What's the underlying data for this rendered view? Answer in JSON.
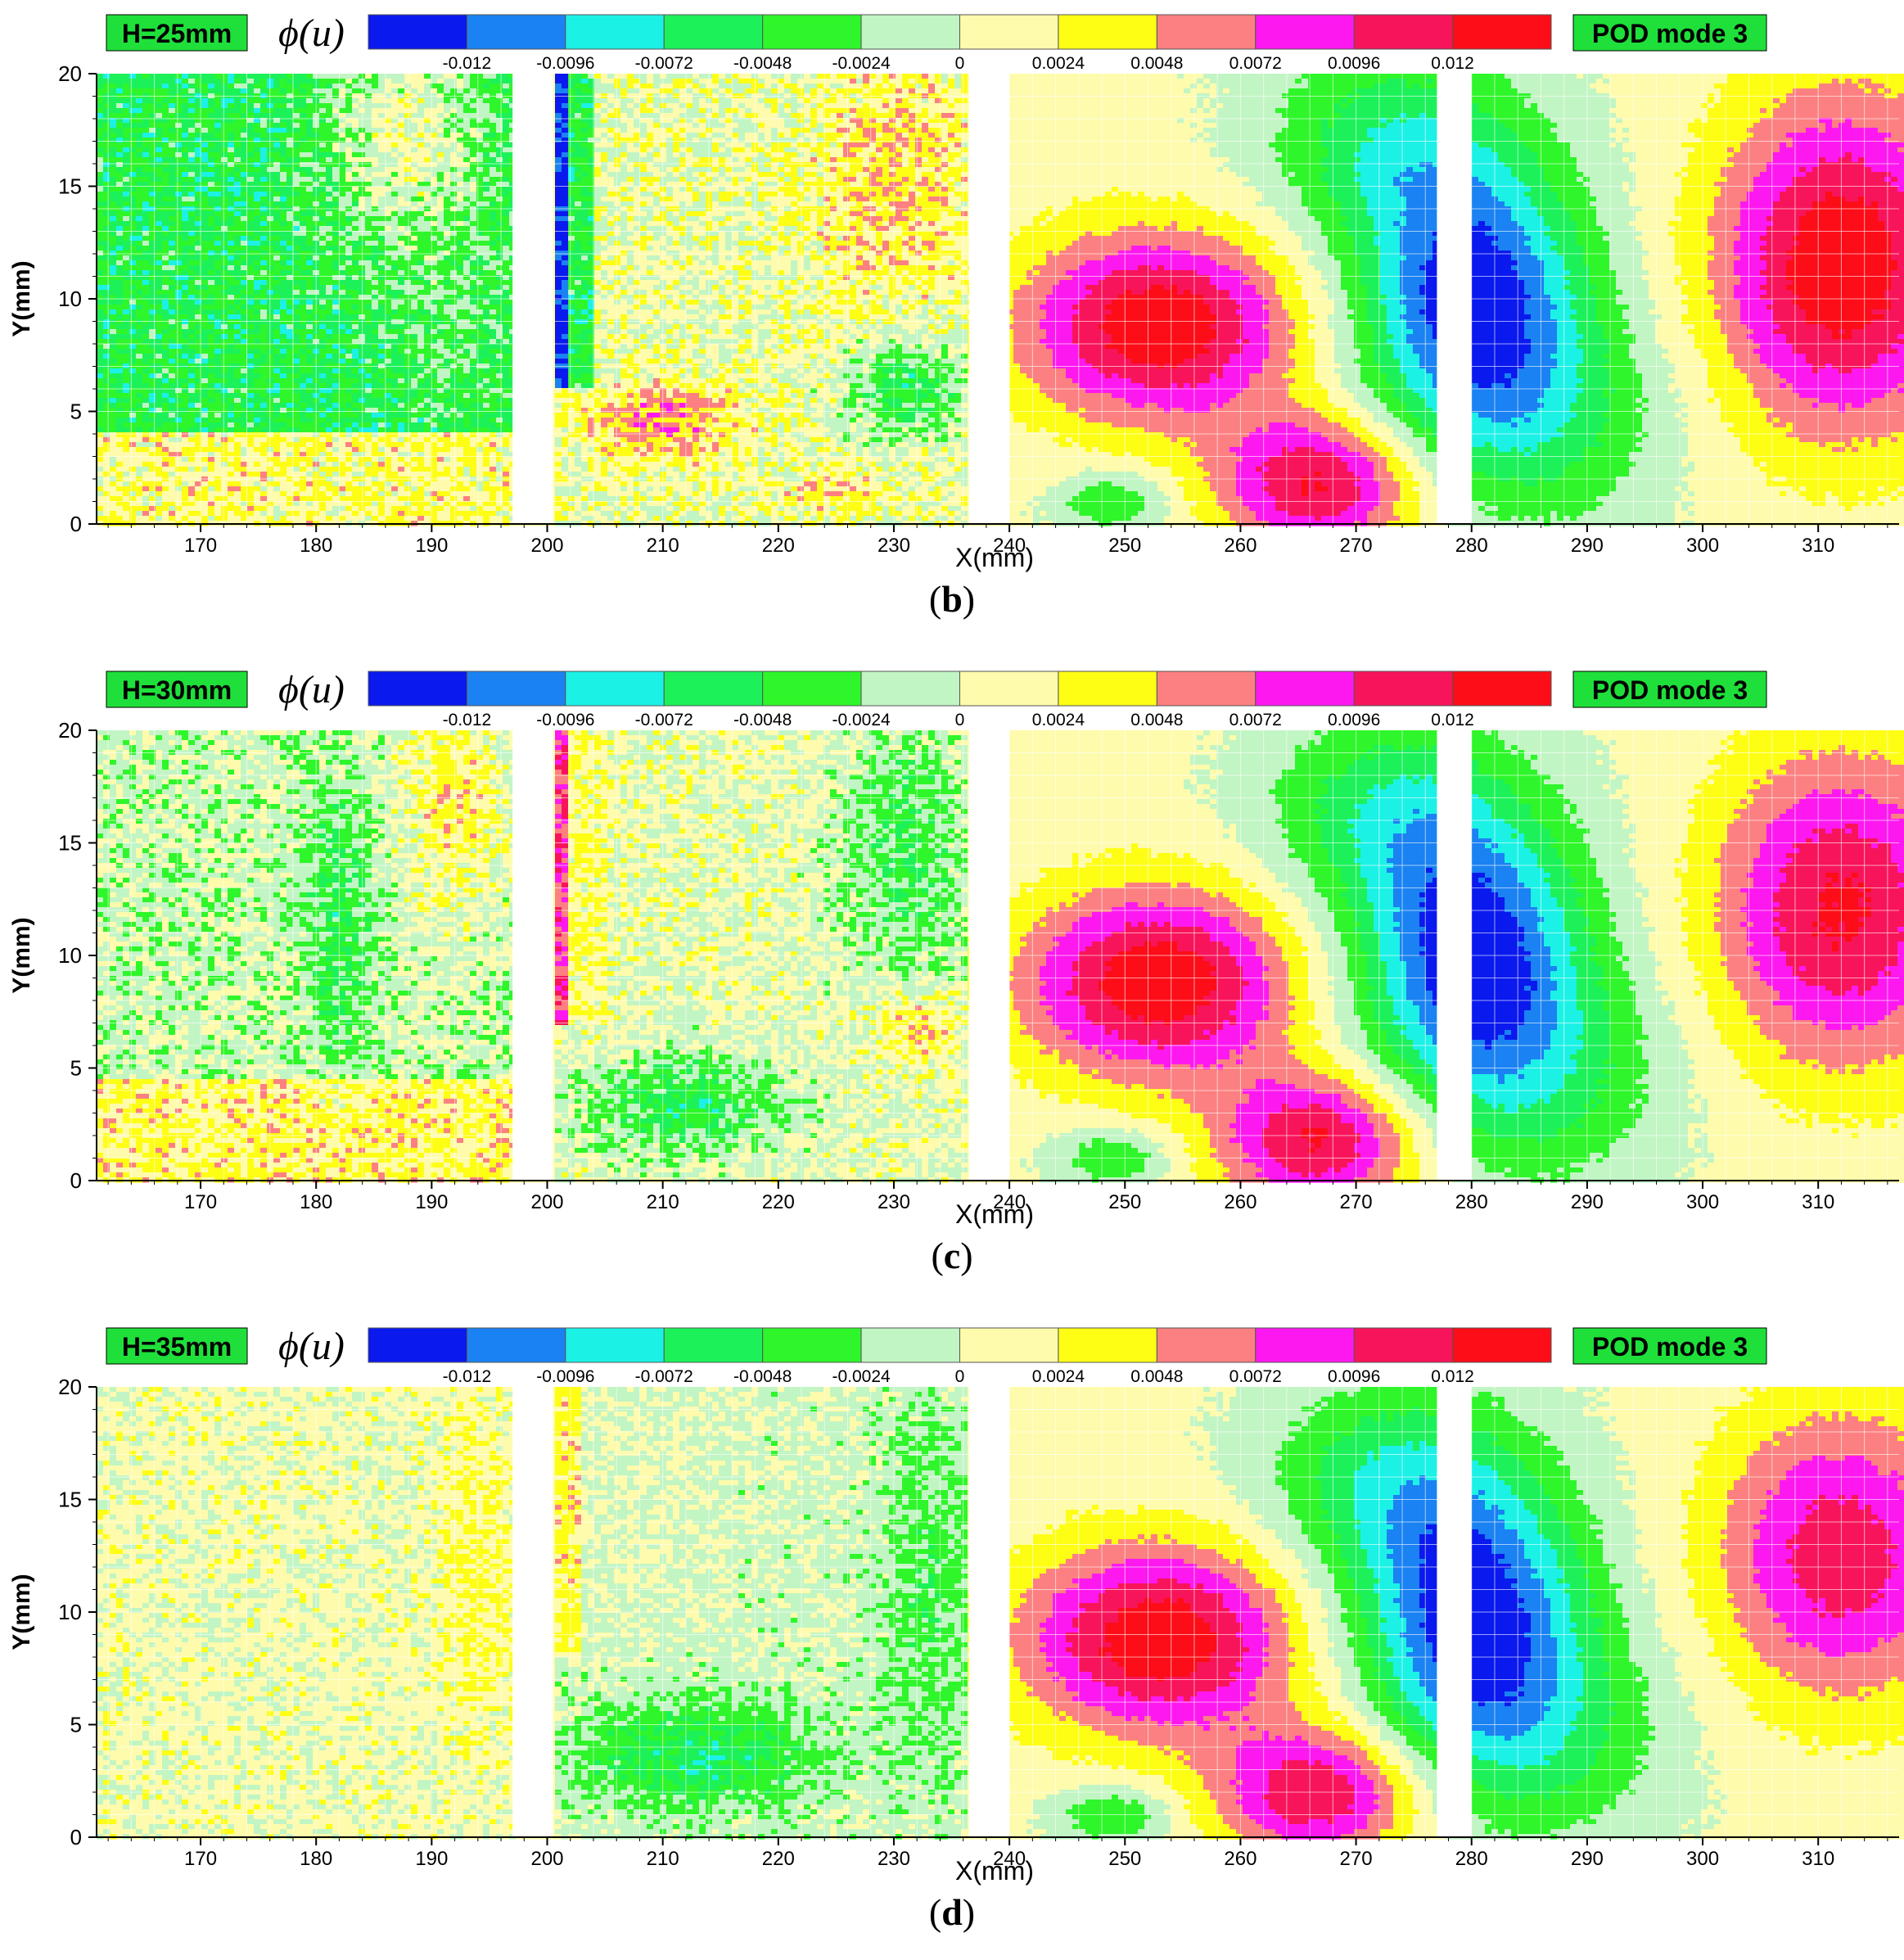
{
  "chart_data": [
    {
      "type": "heatmap",
      "panel_label": "b",
      "h_label": "H=25mm",
      "mode_label": "POD mode 3",
      "colorbar_symbol": "ϕ(u)",
      "xlabel": "X(mm)",
      "ylabel": "Y(mm)",
      "xlim": [
        161,
        317
      ],
      "ylim": [
        0,
        20
      ],
      "x_ticks": [
        170,
        180,
        190,
        200,
        210,
        220,
        230,
        240,
        250,
        260,
        270,
        280,
        290,
        300,
        310
      ],
      "y_ticks": [
        0,
        5,
        10,
        15,
        20
      ],
      "grid": true,
      "gaps_x": [
        [
          197,
          200.5
        ],
        [
          236.5,
          240
        ],
        [
          277,
          280
        ]
      ],
      "noise_strength": 0.9,
      "features": [
        {
          "region": "left",
          "kind": "band",
          "x0": 161,
          "x1": 197,
          "y0": 4,
          "y1": 20,
          "value": -0.005
        },
        {
          "region": "left",
          "kind": "band",
          "x0": 161,
          "x1": 197,
          "y0": 0,
          "y1": 4,
          "value": 0.0022
        },
        {
          "region": "left",
          "kind": "blob",
          "x": 188,
          "y": 17,
          "sx": 7,
          "sy": 5,
          "value": 0.006
        },
        {
          "region": "left",
          "kind": "blob",
          "x": 192,
          "y": 9,
          "sx": 5,
          "sy": 4,
          "value": 0.0016
        },
        {
          "region": "mid",
          "kind": "band",
          "x0": 200.5,
          "x1": 236.5,
          "y0": 0,
          "y1": 20,
          "value": 0.0006
        },
        {
          "region": "mid",
          "kind": "strip",
          "x0": 200.5,
          "x1": 202,
          "y0": 6,
          "y1": 20,
          "value": -0.013
        },
        {
          "region": "mid",
          "kind": "strip",
          "x0": 202,
          "x1": 204,
          "y0": 6,
          "y1": 20,
          "value": -0.005
        },
        {
          "region": "mid",
          "kind": "blob",
          "x": 210,
          "y": 4.6,
          "sx": 7,
          "sy": 1.7,
          "value": 0.0058
        },
        {
          "region": "mid",
          "kind": "blob",
          "x": 230,
          "y": 15,
          "sx": 8,
          "sy": 6,
          "value": 0.0035
        },
        {
          "region": "mid",
          "kind": "blob",
          "x": 231,
          "y": 6,
          "sx": 5,
          "sy": 2,
          "value": -0.006
        },
        {
          "region": "mid",
          "kind": "blob",
          "x": 225,
          "y": 1.5,
          "sx": 6,
          "sy": 1,
          "value": 0.003
        }
      ],
      "vortices": [
        {
          "x": 253,
          "y": 8.8,
          "sx": 12,
          "sy": 4.2,
          "value": 0.0135
        },
        {
          "x": 267,
          "y": 1.8,
          "sx": 9,
          "sy": 3.0,
          "value": 0.012
        },
        {
          "x": 280,
          "y": 10.2,
          "sx": 10,
          "sy": 6.0,
          "value": -0.0135
        },
        {
          "x": 273,
          "y": 17,
          "sx": 11,
          "sy": 4.5,
          "value": -0.0065
        },
        {
          "x": 285,
          "y": 4.5,
          "sx": 12,
          "sy": 5.0,
          "value": -0.0055
        },
        {
          "x": 312,
          "y": 11.5,
          "sx": 11,
          "sy": 7.5,
          "value": 0.0135
        },
        {
          "x": 249,
          "y": 1.0,
          "sx": 5,
          "sy": 1.3,
          "value": -0.0055
        }
      ]
    },
    {
      "type": "heatmap",
      "panel_label": "c",
      "h_label": "H=30mm",
      "mode_label": "POD mode 3",
      "colorbar_symbol": "ϕ(u)",
      "xlabel": "X(mm)",
      "ylabel": "Y(mm)",
      "xlim": [
        161,
        317
      ],
      "ylim": [
        0,
        20
      ],
      "x_ticks": [
        170,
        180,
        190,
        200,
        210,
        220,
        230,
        240,
        250,
        260,
        270,
        280,
        290,
        300,
        310
      ],
      "y_ticks": [
        0,
        5,
        10,
        15,
        20
      ],
      "grid": true,
      "gaps_x": [
        [
          197,
          200.5
        ],
        [
          236.5,
          240
        ],
        [
          277,
          280
        ]
      ],
      "noise_strength": 0.8,
      "features": [
        {
          "region": "left",
          "kind": "band",
          "x0": 161,
          "x1": 197,
          "y0": 4.5,
          "y1": 20,
          "value": -0.0008
        },
        {
          "region": "left",
          "kind": "band",
          "x0": 161,
          "x1": 197,
          "y0": 0,
          "y1": 4.5,
          "value": 0.0028
        },
        {
          "region": "left",
          "kind": "blob",
          "x": 182,
          "y": 11.5,
          "sx": 3,
          "sy": 6,
          "value": -0.004
        },
        {
          "region": "left",
          "kind": "blob",
          "x": 192,
          "y": 17,
          "sx": 5,
          "sy": 5,
          "value": 0.004
        },
        {
          "region": "mid",
          "kind": "band",
          "x0": 200.5,
          "x1": 236.5,
          "y0": 0,
          "y1": 20,
          "value": 0.0005
        },
        {
          "region": "mid",
          "kind": "strip",
          "x0": 200.5,
          "x1": 202,
          "y0": 7,
          "y1": 20,
          "value": 0.0085
        },
        {
          "region": "mid",
          "kind": "strip",
          "x0": 202,
          "x1": 205,
          "y0": 7,
          "y1": 20,
          "value": 0.0022
        },
        {
          "region": "mid",
          "kind": "blob",
          "x": 212,
          "y": 3.4,
          "sx": 9,
          "sy": 2.2,
          "value": -0.0058
        },
        {
          "region": "mid",
          "kind": "blob",
          "x": 231,
          "y": 14.5,
          "sx": 6,
          "sy": 6,
          "value": -0.0045
        },
        {
          "region": "mid",
          "kind": "blob",
          "x": 232,
          "y": 6.8,
          "sx": 4,
          "sy": 1.6,
          "value": 0.004
        }
      ],
      "vortices": [
        {
          "x": 253,
          "y": 8.8,
          "sx": 12,
          "sy": 4.2,
          "value": 0.0135
        },
        {
          "x": 267,
          "y": 1.8,
          "sx": 9,
          "sy": 3.0,
          "value": 0.012
        },
        {
          "x": 280,
          "y": 10.2,
          "sx": 10,
          "sy": 6.0,
          "value": -0.0135
        },
        {
          "x": 273,
          "y": 16.5,
          "sx": 11,
          "sy": 4.5,
          "value": -0.0065
        },
        {
          "x": 285,
          "y": 4.5,
          "sx": 12,
          "sy": 5.0,
          "value": -0.0055
        },
        {
          "x": 312,
          "y": 12,
          "sx": 11,
          "sy": 7.0,
          "value": 0.0118
        },
        {
          "x": 249,
          "y": 1.0,
          "sx": 5,
          "sy": 1.3,
          "value": -0.0055
        }
      ]
    },
    {
      "type": "heatmap",
      "panel_label": "d",
      "h_label": "H=35mm",
      "mode_label": "POD mode 3",
      "colorbar_symbol": "ϕ(u)",
      "xlabel": "X(mm)",
      "ylabel": "Y(mm)",
      "xlim": [
        161,
        317
      ],
      "ylim": [
        0,
        20
      ],
      "x_ticks": [
        170,
        180,
        190,
        200,
        210,
        220,
        230,
        240,
        250,
        260,
        270,
        280,
        290,
        300,
        310
      ],
      "y_ticks": [
        0,
        5,
        10,
        15,
        20
      ],
      "grid": true,
      "gaps_x": [
        [
          197,
          200.5
        ],
        [
          236.5,
          240
        ],
        [
          277,
          280
        ]
      ],
      "noise_strength": 0.6,
      "features": [
        {
          "region": "left",
          "kind": "band",
          "x0": 161,
          "x1": 197,
          "y0": 0,
          "y1": 20,
          "value": 0.0008
        },
        {
          "region": "left",
          "kind": "blob",
          "x": 194,
          "y": 12,
          "sx": 3,
          "sy": 7,
          "value": 0.0022
        },
        {
          "region": "mid",
          "kind": "band",
          "x0": 200.5,
          "x1": 236.5,
          "y0": 0,
          "y1": 20,
          "value": -0.0006
        },
        {
          "region": "mid",
          "kind": "strip",
          "x0": 200.5,
          "x1": 203,
          "y0": 8,
          "y1": 20,
          "value": 0.0028
        },
        {
          "region": "mid",
          "kind": "blob",
          "x": 213,
          "y": 3.6,
          "sx": 10,
          "sy": 2.3,
          "value": -0.0058
        },
        {
          "region": "mid",
          "kind": "blob",
          "x": 233,
          "y": 11,
          "sx": 4,
          "sy": 8,
          "value": -0.003
        },
        {
          "region": "mid",
          "kind": "blob",
          "x": 206,
          "y": 16,
          "sx": 7,
          "sy": 5,
          "value": 0.0009
        }
      ],
      "vortices": [
        {
          "x": 253,
          "y": 8.8,
          "sx": 12,
          "sy": 4.2,
          "value": 0.0135
        },
        {
          "x": 267,
          "y": 2.0,
          "sx": 9,
          "sy": 3.0,
          "value": 0.0115
        },
        {
          "x": 280,
          "y": 10.0,
          "sx": 10,
          "sy": 6.0,
          "value": -0.0132
        },
        {
          "x": 273,
          "y": 16,
          "sx": 11,
          "sy": 4.5,
          "value": -0.0065
        },
        {
          "x": 285,
          "y": 4.5,
          "sx": 12,
          "sy": 5.0,
          "value": -0.0055
        },
        {
          "x": 312,
          "y": 12.5,
          "sx": 11,
          "sy": 6.5,
          "value": 0.0105
        },
        {
          "x": 249,
          "y": 1.0,
          "sx": 5,
          "sy": 1.3,
          "value": -0.0055
        }
      ]
    }
  ],
  "colorbar": {
    "levels": [
      -0.0144,
      -0.012,
      -0.0096,
      -0.0072,
      -0.0048,
      -0.0024,
      0,
      0.0024,
      0.0048,
      0.0072,
      0.0096,
      0.012,
      0.0144
    ],
    "colors": [
      "#0a19ee",
      "#1a82f2",
      "#1cf1e6",
      "#1cf15a",
      "#2ef62a",
      "#c2f5c4",
      "#fefbac",
      "#fefe15",
      "#fc8081",
      "#fe18f0",
      "#f8145a",
      "#fc0d18"
    ],
    "tick_labels": [
      "-0.012",
      "-0.0096",
      "-0.0072",
      "-0.0048",
      "-0.0024",
      "0",
      "0.0024",
      "0.0048",
      "0.0072",
      "0.0096",
      "0.012"
    ],
    "tick_values": [
      -0.012,
      -0.0096,
      -0.0072,
      -0.0048,
      -0.0024,
      0,
      0.0024,
      0.0048,
      0.0072,
      0.0096,
      0.012
    ]
  }
}
